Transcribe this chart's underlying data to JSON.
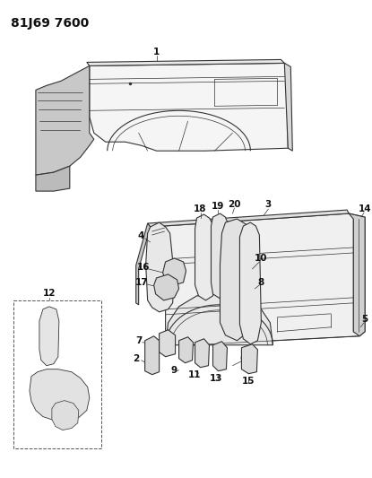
{
  "title": "81J69 7600",
  "bg_color": "#ffffff",
  "lc": "#333333",
  "lc_light": "#666666",
  "title_fontsize": 10,
  "label_fontsize": 7.5
}
